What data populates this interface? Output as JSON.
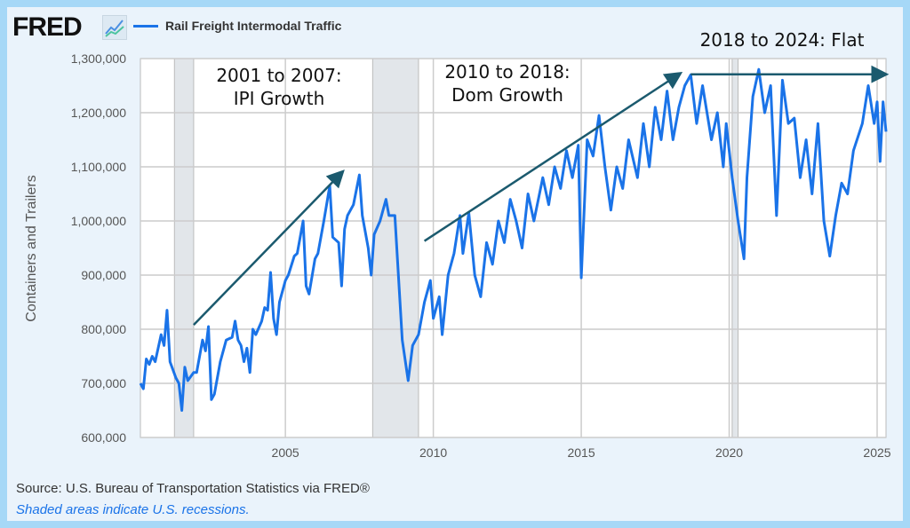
{
  "header": {
    "logo": "FRED",
    "legend_label": "Rail Freight Intermodal Traffic"
  },
  "footer": {
    "source": "Source: U.S. Bureau of Transportation Statistics via FRED®",
    "note": "Shaded areas indicate U.S. recessions."
  },
  "colors": {
    "line": "#1a73e8",
    "arrow": "#1b5a6e",
    "recession": "#e2e6ea"
  },
  "chart_data": {
    "type": "line",
    "title": "Rail Freight Intermodal Traffic",
    "ylabel": "Containers and Trailers",
    "xlabel": "",
    "xlim": [
      2000.1,
      2025.3
    ],
    "ylim": [
      600000,
      1300000
    ],
    "xticks": [
      2005,
      2010,
      2015,
      2020,
      2025
    ],
    "yticks": [
      600000,
      700000,
      800000,
      900000,
      1000000,
      1100000,
      1200000,
      1300000
    ],
    "ytick_labels": [
      "600,000",
      "700,000",
      "800,000",
      "900,000",
      "1,000,000",
      "1,100,000",
      "1,200,000",
      "1,300,000"
    ],
    "recessions": [
      [
        2001.25,
        2001.9
      ],
      [
        2007.95,
        2009.5
      ],
      [
        2020.1,
        2020.3
      ]
    ],
    "series": [
      {
        "name": "Rail Freight Intermodal Traffic",
        "x": [
          2000.1,
          2000.2,
          2000.3,
          2000.4,
          2000.5,
          2000.6,
          2000.8,
          2000.9,
          2001.0,
          2001.1,
          2001.3,
          2001.4,
          2001.5,
          2001.6,
          2001.7,
          2001.9,
          2002.0,
          2002.2,
          2002.3,
          2002.4,
          2002.5,
          2002.6,
          2002.8,
          2003.0,
          2003.2,
          2003.3,
          2003.4,
          2003.5,
          2003.6,
          2003.7,
          2003.8,
          2003.9,
          2004.0,
          2004.2,
          2004.3,
          2004.4,
          2004.5,
          2004.6,
          2004.7,
          2004.8,
          2005.0,
          2005.1,
          2005.3,
          2005.4,
          2005.6,
          2005.7,
          2005.8,
          2006.0,
          2006.1,
          2006.3,
          2006.5,
          2006.6,
          2006.8,
          2006.9,
          2007.0,
          2007.1,
          2007.3,
          2007.5,
          2007.6,
          2007.8,
          2007.9,
          2008.0,
          2008.2,
          2008.4,
          2008.5,
          2008.7,
          2008.95,
          2009.15,
          2009.3,
          2009.5,
          2009.7,
          2009.9,
          2010.0,
          2010.2,
          2010.3,
          2010.5,
          2010.7,
          2010.9,
          2011.0,
          2011.2,
          2011.4,
          2011.6,
          2011.8,
          2012.0,
          2012.2,
          2012.4,
          2012.6,
          2012.8,
          2013.0,
          2013.2,
          2013.4,
          2013.7,
          2013.9,
          2014.1,
          2014.3,
          2014.5,
          2014.7,
          2014.9,
          2015.0,
          2015.2,
          2015.4,
          2015.6,
          2015.8,
          2016.0,
          2016.2,
          2016.4,
          2016.6,
          2016.9,
          2017.1,
          2017.3,
          2017.5,
          2017.7,
          2017.9,
          2018.1,
          2018.3,
          2018.5,
          2018.7,
          2018.9,
          2019.1,
          2019.4,
          2019.6,
          2019.8,
          2019.9,
          2020.1,
          2020.3,
          2020.5,
          2020.6,
          2020.8,
          2021.0,
          2021.2,
          2021.4,
          2021.6,
          2021.8,
          2022.0,
          2022.2,
          2022.4,
          2022.6,
          2022.8,
          2023.0,
          2023.2,
          2023.4,
          2023.6,
          2023.8,
          2024.0,
          2024.2,
          2024.5,
          2024.7,
          2024.9,
          2025.0,
          2025.1,
          2025.2,
          2025.3
        ],
        "values": [
          700000,
          690000,
          745000,
          735000,
          750000,
          740000,
          790000,
          770000,
          835000,
          740000,
          710000,
          700000,
          650000,
          730000,
          705000,
          720000,
          720000,
          780000,
          760000,
          805000,
          670000,
          680000,
          740000,
          780000,
          785000,
          815000,
          780000,
          770000,
          740000,
          765000,
          720000,
          800000,
          790000,
          815000,
          840000,
          835000,
          905000,
          820000,
          790000,
          850000,
          890000,
          900000,
          935000,
          940000,
          1000000,
          880000,
          865000,
          930000,
          940000,
          1000000,
          1065000,
          970000,
          960000,
          880000,
          985000,
          1010000,
          1030000,
          1085000,
          1010000,
          950000,
          900000,
          975000,
          1000000,
          1040000,
          1010000,
          1010000,
          780000,
          705000,
          770000,
          790000,
          850000,
          890000,
          820000,
          860000,
          790000,
          900000,
          940000,
          1010000,
          940000,
          1015000,
          900000,
          860000,
          960000,
          920000,
          1000000,
          960000,
          1040000,
          1000000,
          950000,
          1050000,
          1000000,
          1080000,
          1030000,
          1100000,
          1060000,
          1130000,
          1080000,
          1140000,
          895000,
          1150000,
          1120000,
          1195000,
          1100000,
          1020000,
          1100000,
          1060000,
          1150000,
          1080000,
          1180000,
          1100000,
          1210000,
          1150000,
          1240000,
          1150000,
          1210000,
          1250000,
          1270000,
          1180000,
          1250000,
          1150000,
          1200000,
          1100000,
          1180000,
          1080000,
          1000000,
          930000,
          1080000,
          1230000,
          1280000,
          1200000,
          1250000,
          1010000,
          1260000,
          1180000,
          1190000,
          1080000,
          1150000,
          1050000,
          1180000,
          1000000,
          935000,
          1010000,
          1070000,
          1050000,
          1130000,
          1180000,
          1250000,
          1180000,
          1220000,
          1110000,
          1220000,
          1165000
        ]
      }
    ],
    "annotations": [
      {
        "text": [
          "2001 to 2007:",
          "IPI Growth"
        ],
        "arrow_from": [
          2001.9,
          808000
        ],
        "arrow_to": [
          2006.9,
          1089000
        ]
      },
      {
        "text": [
          "2010 to 2018:",
          "Dom Growth"
        ],
        "arrow_from": [
          2009.7,
          963000
        ],
        "arrow_to": [
          2018.3,
          1271000
        ]
      },
      {
        "text": [
          "2018 to 2024: Flat"
        ],
        "arrow_from": [
          2018.7,
          1271000
        ],
        "arrow_to": [
          2025.25,
          1271000
        ]
      }
    ]
  }
}
